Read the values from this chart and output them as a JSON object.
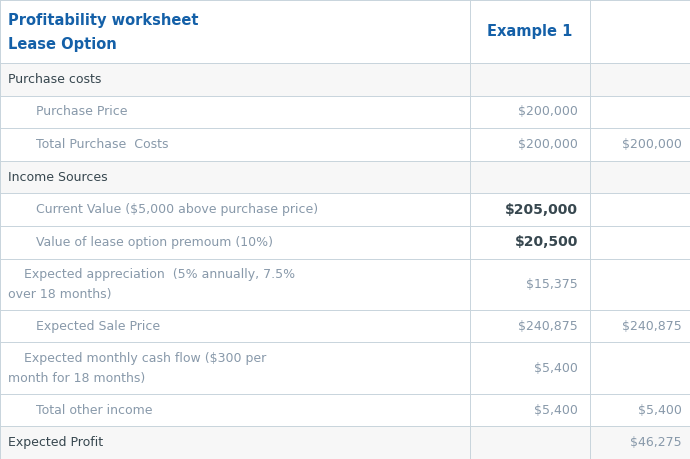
{
  "title_line1": "Profitability worksheet",
  "title_line2": "Lease Option",
  "col_header": "Example 1",
  "title_color": "#1460A8",
  "header_color": "#1460A8",
  "text_color_dark": "#37474F",
  "text_color_muted": "#8899AA",
  "text_color_normal": "#546E7A",
  "bg_color": "#FFFFFF",
  "border_color": "#C8D4DC",
  "section_bg": "#F7F7F7",
  "row_bg": "#FFFFFF",
  "rows": [
    {
      "label": "Purchase costs",
      "col1": "",
      "col2": "",
      "indent": 0,
      "bold_col1": false,
      "bold_col2": false,
      "is_section": true,
      "multiline": false
    },
    {
      "label": "Purchase Price",
      "col1": "$200,000",
      "col2": "",
      "indent": 1,
      "bold_col1": false,
      "bold_col2": false,
      "is_section": false,
      "multiline": false
    },
    {
      "label": "Total Purchase  Costs",
      "col1": "$200,000",
      "col2": "$200,000",
      "indent": 1,
      "bold_col1": false,
      "bold_col2": false,
      "is_section": false,
      "multiline": false
    },
    {
      "label": "Income Sources",
      "col1": "",
      "col2": "",
      "indent": 0,
      "bold_col1": false,
      "bold_col2": false,
      "is_section": true,
      "multiline": false
    },
    {
      "label": "Current Value ($5,000 above purchase price)",
      "col1": "$205,000",
      "col2": "",
      "indent": 1,
      "bold_col1": true,
      "bold_col2": false,
      "is_section": false,
      "multiline": false
    },
    {
      "label": "Value of lease option premoum (10%)",
      "col1": "$20,500",
      "col2": "",
      "indent": 1,
      "bold_col1": true,
      "bold_col2": false,
      "is_section": false,
      "multiline": false
    },
    {
      "label1": "    Expected appreciation  (5% annually, 7.5%",
      "label2": "over 18 months)",
      "col1": "$15,375",
      "col2": "",
      "indent": 1,
      "bold_col1": false,
      "bold_col2": false,
      "is_section": false,
      "multiline": true
    },
    {
      "label": "Expected Sale Price",
      "col1": "$240,875",
      "col2": "$240,875",
      "indent": 1,
      "bold_col1": false,
      "bold_col2": false,
      "is_section": false,
      "multiline": false
    },
    {
      "label1": "    Expected monthly cash flow ($300 per",
      "label2": "month for 18 months)",
      "col1": "$5,400",
      "col2": "",
      "indent": 1,
      "bold_col1": false,
      "bold_col2": false,
      "is_section": false,
      "multiline": true
    },
    {
      "label": "Total other income",
      "col1": "$5,400",
      "col2": "$5,400",
      "indent": 1,
      "bold_col1": false,
      "bold_col2": false,
      "is_section": false,
      "multiline": false
    },
    {
      "label": "Expected Profit",
      "col1": "",
      "col2": "$46,275",
      "indent": 0,
      "bold_col1": false,
      "bold_col2": false,
      "is_section": true,
      "multiline": false
    }
  ],
  "figsize": [
    6.9,
    4.59
  ],
  "dpi": 100
}
